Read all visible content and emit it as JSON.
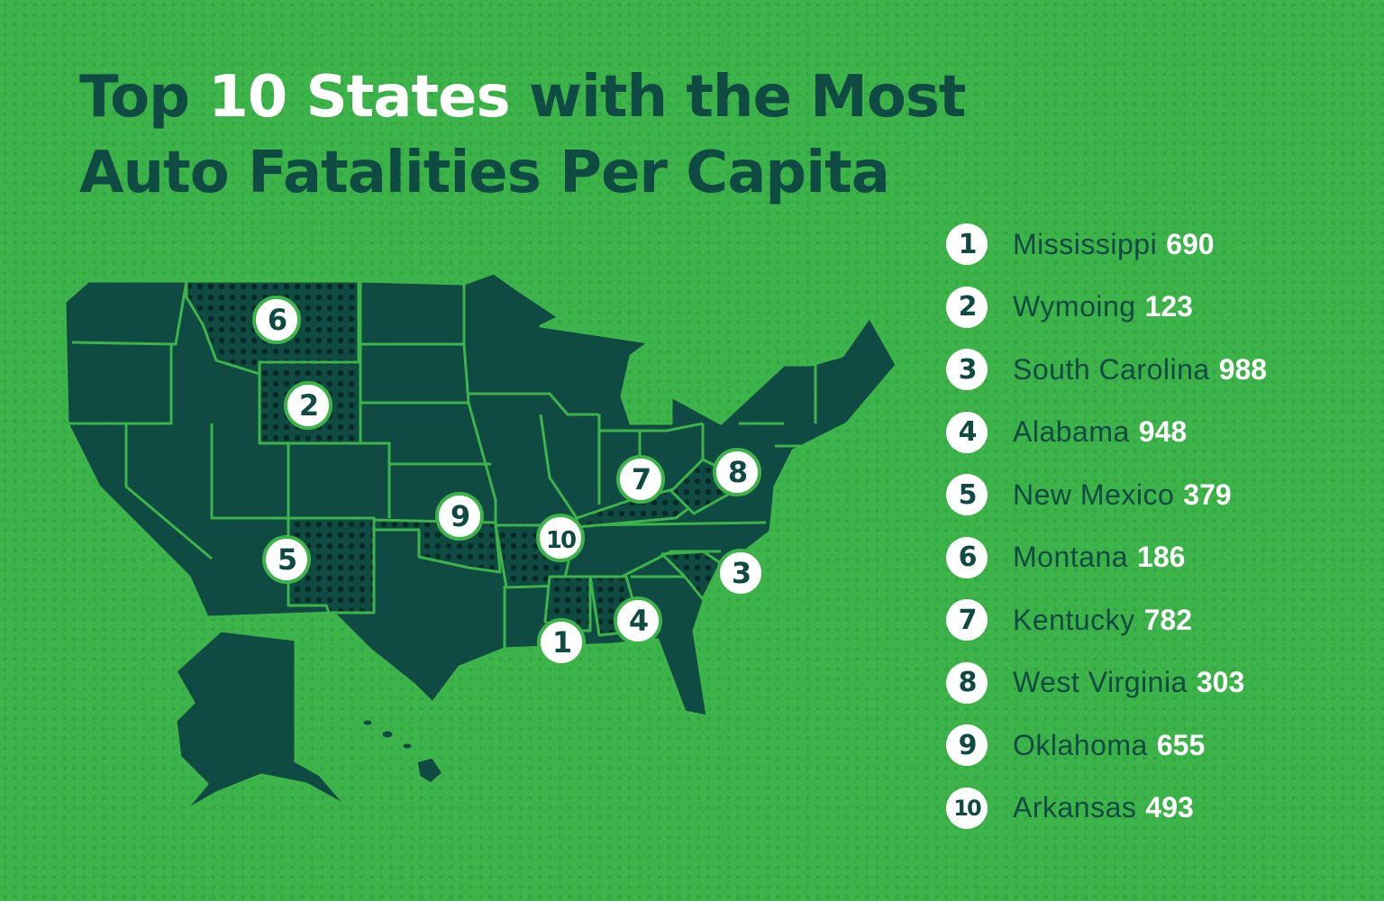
{
  "title": {
    "part1": "Top ",
    "highlight": "10 States",
    "part2": " with the Most",
    "line2": "Auto Fatalities Per Capita"
  },
  "colors": {
    "background": "#3db449",
    "map": "#0f4a43",
    "borders": "#3db449",
    "text": "#0f4a43",
    "value": "#ffffff",
    "badge": "#ffffff"
  },
  "legend": [
    {
      "rank": "1",
      "state": "Mississippi",
      "value": "690"
    },
    {
      "rank": "2",
      "state": "Wymoing",
      "value": "123"
    },
    {
      "rank": "3",
      "state": "South Carolina",
      "value": "988"
    },
    {
      "rank": "4",
      "state": "Alabama",
      "value": "948"
    },
    {
      "rank": "5",
      "state": "New Mexico",
      "value": "379"
    },
    {
      "rank": "6",
      "state": "Montana",
      "value": "186"
    },
    {
      "rank": "7",
      "state": "Kentucky",
      "value": "782"
    },
    {
      "rank": "8",
      "state": "West Virginia",
      "value": "303"
    },
    {
      "rank": "9",
      "state": "Oklahoma",
      "value": "655"
    },
    {
      "rank": "10",
      "state": "Arkansas",
      "value": "493"
    }
  ],
  "map_badges": [
    "1",
    "2",
    "3",
    "4",
    "5",
    "6",
    "7",
    "8",
    "9",
    "10"
  ]
}
